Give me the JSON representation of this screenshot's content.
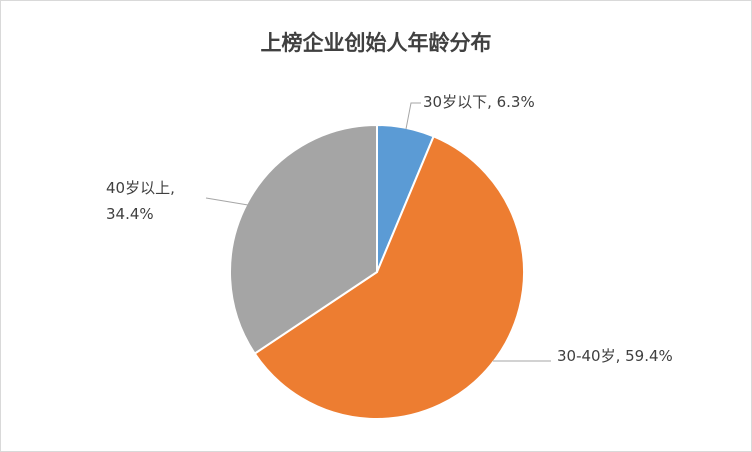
{
  "chart_data": {
    "type": "pie",
    "title": "上榜企业创始人年龄分布",
    "values": [
      6.3,
      59.4,
      34.4
    ],
    "value_labels": [
      "30岁以下, 6.3%",
      "30-40岁, 59.4%",
      "40岁以上, 34.4%"
    ],
    "colors": [
      "#5b9bd5",
      "#ed7d31",
      "#a5a5a5"
    ]
  }
}
